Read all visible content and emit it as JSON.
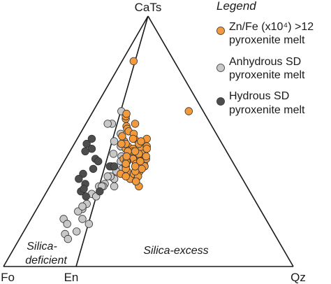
{
  "chart_data": {
    "type": "scatter",
    "subtype": "ternary",
    "vertices": {
      "top": "CaTs",
      "bottom_left": "Fo",
      "bottom_middle": "En",
      "bottom_right": "Qz"
    },
    "regions": [
      {
        "label_lines": [
          "Silica-",
          "deficient"
        ]
      },
      {
        "label_lines": [
          "Silica-excess"
        ]
      }
    ],
    "legend": {
      "title": "Legend",
      "placement": "top-right",
      "entries": [
        {
          "series": "zn_fe",
          "lines": [
            "Zn/Fe (x10⁴) >12",
            "pyroxenite melt"
          ]
        },
        {
          "series": "anhydrous",
          "lines": [
            "Anhydrous SD",
            "pyroxenite melt"
          ]
        },
        {
          "series": "hydrous",
          "lines": [
            "Hydrous SD",
            "pyroxenite melt"
          ]
        }
      ]
    },
    "colors": {
      "zn_fe": "#f39a3c",
      "anhydrous": "#c8c8c8",
      "hydrous": "#4d4d4d",
      "outline": "#333333"
    },
    "coordinate_note": "Each point is [CaTs, En, Qz] as fractions of the whole (Fo = 1 - CaTs - En - Qz).",
    "series": [
      {
        "key": "zn_fe",
        "points": [
          [
            0.62,
            0.0,
            0.33
          ],
          [
            0.82,
            0.0,
            0.04
          ],
          [
            0.59,
            0.11,
            0.1
          ],
          [
            0.6,
            0.13,
            0.09
          ],
          [
            0.61,
            0.0,
            0.12
          ],
          [
            0.56,
            0.02,
            0.14
          ],
          [
            0.55,
            0.01,
            0.15
          ],
          [
            0.57,
            0.0,
            0.17
          ],
          [
            0.51,
            0.03,
            0.19
          ],
          [
            0.48,
            0.04,
            0.18
          ],
          [
            0.47,
            0.05,
            0.2
          ],
          [
            0.45,
            0.08,
            0.19
          ],
          [
            0.47,
            0.05,
            0.23
          ],
          [
            0.44,
            0.06,
            0.22
          ],
          [
            0.44,
            0.05,
            0.24
          ],
          [
            0.43,
            0.09,
            0.21
          ],
          [
            0.41,
            0.09,
            0.23
          ],
          [
            0.38,
            0.11,
            0.21
          ],
          [
            0.35,
            0.13,
            0.23
          ],
          [
            0.37,
            0.1,
            0.24
          ],
          [
            0.4,
            0.07,
            0.25
          ],
          [
            0.41,
            0.04,
            0.27
          ],
          [
            0.45,
            0.02,
            0.25
          ],
          [
            0.48,
            0.02,
            0.25
          ],
          [
            0.51,
            0.0,
            0.24
          ],
          [
            0.49,
            0.01,
            0.22
          ],
          [
            0.46,
            0.03,
            0.21
          ],
          [
            0.43,
            0.08,
            0.18
          ],
          [
            0.37,
            0.12,
            0.19
          ],
          [
            0.4,
            0.09,
            0.2
          ],
          [
            0.42,
            0.07,
            0.2
          ],
          [
            0.47,
            0.07,
            0.17
          ],
          [
            0.49,
            0.06,
            0.16
          ],
          [
            0.5,
            0.07,
            0.15
          ],
          [
            0.54,
            0.05,
            0.15
          ],
          [
            0.53,
            0.06,
            0.17
          ],
          [
            0.52,
            0.08,
            0.13
          ],
          [
            0.49,
            0.03,
            0.17
          ],
          [
            0.46,
            0.04,
            0.19
          ],
          [
            0.42,
            0.06,
            0.2
          ],
          [
            0.39,
            0.07,
            0.21
          ],
          [
            0.36,
            0.09,
            0.22
          ],
          [
            0.34,
            0.11,
            0.26
          ],
          [
            0.38,
            0.08,
            0.26
          ],
          [
            0.43,
            0.03,
            0.27
          ],
          [
            0.47,
            0.0,
            0.26
          ],
          [
            0.44,
            0.01,
            0.27
          ],
          [
            0.4,
            0.03,
            0.28
          ],
          [
            0.44,
            0.1,
            0.18
          ],
          [
            0.41,
            0.11,
            0.19
          ],
          [
            0.49,
            0.09,
            0.14
          ],
          [
            0.51,
            0.05,
            0.18
          ],
          [
            0.45,
            0.05,
            0.23
          ],
          [
            0.5,
            0.02,
            0.22
          ],
          [
            0.46,
            0.06,
            0.21
          ],
          [
            0.42,
            0.05,
            0.25
          ],
          [
            0.39,
            0.05,
            0.27
          ],
          [
            0.36,
            0.06,
            0.27
          ],
          [
            0.32,
            0.07,
            0.29
          ],
          [
            0.34,
            0.07,
            0.27
          ],
          [
            0.38,
            0.06,
            0.25
          ],
          [
            0.4,
            0.06,
            0.24
          ]
        ]
      },
      {
        "key": "anhydrous",
        "points": [
          [
            0.62,
            0.11,
            0.07
          ],
          [
            0.57,
            0.16,
            0.05
          ],
          [
            0.57,
            0.18,
            0.03
          ],
          [
            0.53,
            0.08,
            0.12
          ],
          [
            0.48,
            0.1,
            0.14
          ],
          [
            0.5,
            0.13,
            0.1
          ],
          [
            0.44,
            0.03,
            0.18
          ],
          [
            0.39,
            0.02,
            0.21
          ],
          [
            0.35,
            0.03,
            0.2
          ],
          [
            0.32,
            0.05,
            0.21
          ],
          [
            0.33,
            0.1,
            0.16
          ],
          [
            0.32,
            0.12,
            0.14
          ],
          [
            0.29,
            0.08,
            0.14
          ],
          [
            0.28,
            0.04,
            0.17
          ],
          [
            0.32,
            0.02,
            0.18
          ],
          [
            0.25,
            0.05,
            0.15
          ],
          [
            0.23,
            0.07,
            0.14
          ],
          [
            0.22,
            0.11,
            0.12
          ],
          [
            0.19,
            0.13,
            0.08
          ],
          [
            0.17,
            0.1,
            0.11
          ],
          [
            0.13,
            0.07,
            0.13
          ],
          [
            0.14,
            0.05,
            0.17
          ],
          [
            0.11,
            0.03,
            0.16
          ],
          [
            0.17,
            0.0,
            0.21
          ],
          [
            0.19,
            0.03,
            0.17
          ],
          [
            0.24,
            0.01,
            0.15
          ],
          [
            0.45,
            0.06,
            0.14
          ],
          [
            0.42,
            0.06,
            0.18
          ],
          [
            0.38,
            0.0,
            0.2
          ],
          [
            0.4,
            0.01,
            0.17
          ],
          [
            0.36,
            0.0,
            0.19
          ],
          [
            0.36,
            0.0,
            0.18
          ],
          [
            0.32,
            0.0,
            0.18
          ]
        ]
      },
      {
        "key": "hydrous",
        "points": [
          [
            0.51,
            0.2,
            0.0
          ],
          [
            0.49,
            0.17,
            0.0
          ],
          [
            0.47,
            0.16,
            0.03
          ],
          [
            0.46,
            0.21,
            0.0
          ],
          [
            0.43,
            0.17,
            0.06
          ],
          [
            0.42,
            0.15,
            0.08
          ],
          [
            0.39,
            0.14,
            0.08
          ],
          [
            0.37,
            0.2,
            0.04
          ],
          [
            0.35,
            0.18,
            0.04
          ],
          [
            0.33,
            0.15,
            0.08
          ],
          [
            0.3,
            0.15,
            0.08
          ],
          [
            0.31,
            0.09,
            0.1
          ],
          [
            0.4,
            0.07,
            0.15
          ],
          [
            0.4,
            0.05,
            0.17
          ],
          [
            0.3,
            0.05,
            0.17
          ],
          [
            0.28,
            0.06,
            0.13
          ]
        ]
      }
    ]
  }
}
